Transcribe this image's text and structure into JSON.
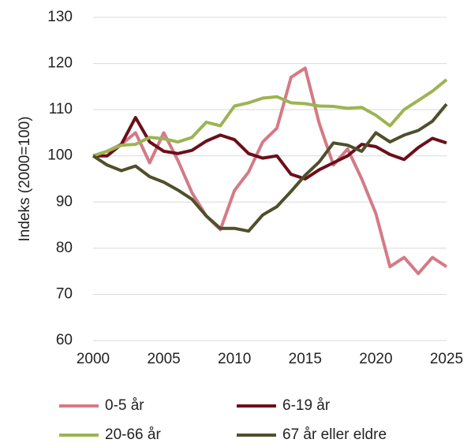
{
  "chart_data": {
    "type": "line",
    "y_label": "Indeks (2000=100)",
    "x": [
      2000,
      2001,
      2002,
      2003,
      2004,
      2005,
      2006,
      2007,
      2008,
      2009,
      2010,
      2011,
      2012,
      2013,
      2014,
      2015,
      2016,
      2017,
      2018,
      2019,
      2020,
      2021,
      2022,
      2023,
      2024,
      2025
    ],
    "xlim": [
      2000,
      2025
    ],
    "xticks": [
      2000,
      2005,
      2010,
      2015,
      2020,
      2025
    ],
    "ylim": [
      60,
      130
    ],
    "yticks": [
      60,
      70,
      80,
      90,
      100,
      110,
      120,
      130
    ],
    "grid": true,
    "legend": "bottom",
    "series": [
      {
        "name": "0-5 år",
        "color": "#d47a86",
        "values": [
          100,
          101,
          102.5,
          105,
          98.5,
          105,
          99,
          92,
          87,
          84,
          92.5,
          96.5,
          103,
          106,
          117,
          119,
          107,
          98,
          101.5,
          95,
          87.5,
          76,
          78,
          74.5,
          78,
          76
        ]
      },
      {
        "name": "6-19 år",
        "color": "#6b0f1a",
        "values": [
          100,
          100,
          102.5,
          108.3,
          103,
          101,
          100.5,
          101.2,
          103.2,
          104.5,
          103.5,
          100.5,
          99.5,
          100,
          96,
          95,
          97,
          98.5,
          100,
          102.5,
          102,
          100.3,
          99.2,
          101.8,
          103.8,
          102.8
        ]
      },
      {
        "name": "20-66 år",
        "color": "#9cb452",
        "values": [
          100,
          101,
          102.3,
          102.5,
          104,
          103.7,
          103,
          104,
          107.3,
          106.5,
          110.8,
          111.5,
          112.5,
          112.8,
          111.5,
          111.3,
          110.8,
          110.7,
          110.3,
          110.5,
          108.8,
          106.5,
          110,
          112,
          114,
          116.5
        ]
      },
      {
        "name": "67 år eller eldre",
        "color": "#4f4f2b",
        "values": [
          100,
          98,
          96.8,
          97.8,
          95.5,
          94.3,
          92.6,
          90.6,
          87,
          84.3,
          84.3,
          83.7,
          87.2,
          89,
          92.3,
          95.8,
          98.7,
          102.8,
          102.3,
          101,
          105,
          103,
          104.5,
          105.5,
          107.5,
          111.2
        ]
      }
    ]
  }
}
